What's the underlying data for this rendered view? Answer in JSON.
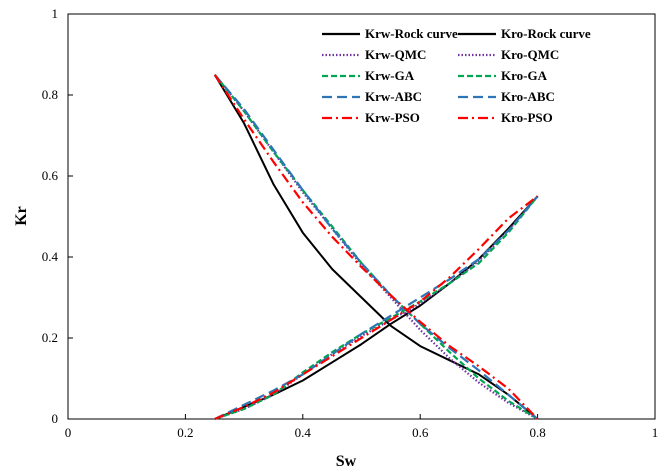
{
  "chart_data": {
    "type": "line",
    "title": "",
    "xlabel": "Sw",
    "ylabel": "Kr",
    "xlim": [
      0,
      1
    ],
    "ylim": [
      0,
      1
    ],
    "x_ticks": [
      "0",
      "0.2",
      "0.4",
      "0.6",
      "0.8",
      "1"
    ],
    "y_ticks": [
      "0",
      "0.2",
      "0.4",
      "0.6",
      "0.8",
      "1"
    ],
    "grid": false,
    "legend_position": "top-right",
    "series": [
      {
        "name": "Krw-Rock curve",
        "color": "#000000",
        "dash": "solid",
        "points": [
          [
            0.25,
            0
          ],
          [
            0.3,
            0.03
          ],
          [
            0.35,
            0.06
          ],
          [
            0.4,
            0.095
          ],
          [
            0.45,
            0.14
          ],
          [
            0.5,
            0.185
          ],
          [
            0.55,
            0.235
          ],
          [
            0.6,
            0.28
          ],
          [
            0.65,
            0.335
          ],
          [
            0.7,
            0.395
          ],
          [
            0.75,
            0.47
          ],
          [
            0.8,
            0.55
          ]
        ]
      },
      {
        "name": "Kro-Rock curve",
        "color": "#000000",
        "dash": "solid",
        "points": [
          [
            0.25,
            0.85
          ],
          [
            0.3,
            0.73
          ],
          [
            0.35,
            0.58
          ],
          [
            0.4,
            0.46
          ],
          [
            0.45,
            0.37
          ],
          [
            0.5,
            0.3
          ],
          [
            0.55,
            0.23
          ],
          [
            0.6,
            0.18
          ],
          [
            0.65,
            0.145
          ],
          [
            0.7,
            0.11
          ],
          [
            0.75,
            0.06
          ],
          [
            0.8,
            0
          ]
        ]
      },
      {
        "name": "Krw-QMC",
        "color": "#7030A0",
        "dash": "dotted",
        "points": [
          [
            0.25,
            0
          ],
          [
            0.3,
            0.025
          ],
          [
            0.35,
            0.06
          ],
          [
            0.4,
            0.11
          ],
          [
            0.45,
            0.16
          ],
          [
            0.5,
            0.205
          ],
          [
            0.55,
            0.245
          ],
          [
            0.6,
            0.285
          ],
          [
            0.65,
            0.335
          ],
          [
            0.7,
            0.39
          ],
          [
            0.75,
            0.465
          ],
          [
            0.8,
            0.55
          ]
        ]
      },
      {
        "name": "Kro-QMC",
        "color": "#7030A0",
        "dash": "dotted",
        "points": [
          [
            0.25,
            0.85
          ],
          [
            0.3,
            0.76
          ],
          [
            0.35,
            0.66
          ],
          [
            0.4,
            0.56
          ],
          [
            0.45,
            0.47
          ],
          [
            0.5,
            0.38
          ],
          [
            0.55,
            0.3
          ],
          [
            0.6,
            0.22
          ],
          [
            0.65,
            0.15
          ],
          [
            0.7,
            0.09
          ],
          [
            0.75,
            0.04
          ],
          [
            0.8,
            0
          ]
        ]
      },
      {
        "name": "Krw-GA",
        "color": "#00A651",
        "dash": "dashed",
        "points": [
          [
            0.25,
            0
          ],
          [
            0.3,
            0.025
          ],
          [
            0.35,
            0.06
          ],
          [
            0.4,
            0.115
          ],
          [
            0.45,
            0.165
          ],
          [
            0.5,
            0.21
          ],
          [
            0.55,
            0.25
          ],
          [
            0.6,
            0.29
          ],
          [
            0.65,
            0.335
          ],
          [
            0.7,
            0.385
          ],
          [
            0.75,
            0.46
          ],
          [
            0.8,
            0.55
          ]
        ]
      },
      {
        "name": "Kro-GA",
        "color": "#00A651",
        "dash": "dashed",
        "points": [
          [
            0.25,
            0.85
          ],
          [
            0.3,
            0.76
          ],
          [
            0.35,
            0.66
          ],
          [
            0.4,
            0.565
          ],
          [
            0.45,
            0.475
          ],
          [
            0.5,
            0.385
          ],
          [
            0.55,
            0.305
          ],
          [
            0.6,
            0.235
          ],
          [
            0.65,
            0.165
          ],
          [
            0.7,
            0.1
          ],
          [
            0.75,
            0.045
          ],
          [
            0.8,
            0
          ]
        ]
      },
      {
        "name": "Krw-ABC",
        "color": "#2E75B6",
        "dash": "longdash",
        "points": [
          [
            0.25,
            0
          ],
          [
            0.3,
            0.035
          ],
          [
            0.35,
            0.07
          ],
          [
            0.4,
            0.11
          ],
          [
            0.45,
            0.16
          ],
          [
            0.5,
            0.21
          ],
          [
            0.55,
            0.255
          ],
          [
            0.6,
            0.3
          ],
          [
            0.65,
            0.345
          ],
          [
            0.7,
            0.395
          ],
          [
            0.75,
            0.465
          ],
          [
            0.8,
            0.55
          ]
        ]
      },
      {
        "name": "Kro-ABC",
        "color": "#2E75B6",
        "dash": "longdash",
        "points": [
          [
            0.25,
            0.85
          ],
          [
            0.3,
            0.765
          ],
          [
            0.35,
            0.665
          ],
          [
            0.4,
            0.565
          ],
          [
            0.45,
            0.47
          ],
          [
            0.5,
            0.385
          ],
          [
            0.55,
            0.305
          ],
          [
            0.6,
            0.235
          ],
          [
            0.65,
            0.175
          ],
          [
            0.7,
            0.12
          ],
          [
            0.75,
            0.06
          ],
          [
            0.8,
            0
          ]
        ]
      },
      {
        "name": "Krw-PSO",
        "color": "#FF0000",
        "dash": "dashdot",
        "points": [
          [
            0.25,
            0
          ],
          [
            0.3,
            0.03
          ],
          [
            0.35,
            0.065
          ],
          [
            0.4,
            0.11
          ],
          [
            0.45,
            0.155
          ],
          [
            0.5,
            0.2
          ],
          [
            0.55,
            0.245
          ],
          [
            0.6,
            0.29
          ],
          [
            0.65,
            0.35
          ],
          [
            0.7,
            0.42
          ],
          [
            0.75,
            0.495
          ],
          [
            0.8,
            0.55
          ]
        ]
      },
      {
        "name": "Kro-PSO",
        "color": "#FF0000",
        "dash": "dashdot",
        "points": [
          [
            0.25,
            0.85
          ],
          [
            0.3,
            0.74
          ],
          [
            0.35,
            0.635
          ],
          [
            0.4,
            0.535
          ],
          [
            0.45,
            0.45
          ],
          [
            0.5,
            0.375
          ],
          [
            0.55,
            0.305
          ],
          [
            0.6,
            0.24
          ],
          [
            0.65,
            0.18
          ],
          [
            0.7,
            0.13
          ],
          [
            0.75,
            0.075
          ],
          [
            0.8,
            0
          ]
        ]
      }
    ]
  }
}
